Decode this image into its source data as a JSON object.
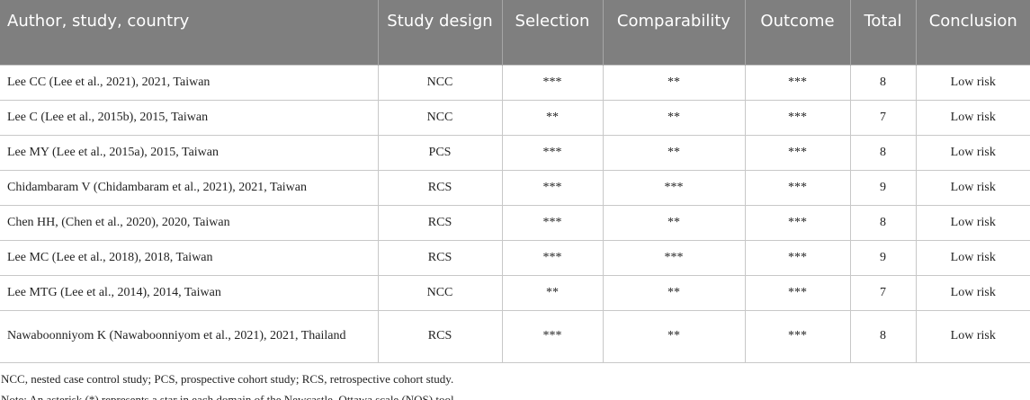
{
  "table": {
    "header": [
      "Author, study, country",
      "Study design",
      "Selection",
      "Comparability",
      "Outcome",
      "Total",
      "Conclusion"
    ],
    "rows": [
      [
        "Lee CC (Lee et al., 2021), 2021, Taiwan",
        "NCC",
        "***",
        "**",
        "***",
        "8",
        "Low risk"
      ],
      [
        "Lee C (Lee et al., 2015b), 2015, Taiwan",
        "NCC",
        "**",
        "**",
        "***",
        "7",
        "Low risk"
      ],
      [
        "Lee MY (Lee et al., 2015a), 2015, Taiwan",
        "PCS",
        "***",
        "**",
        "***",
        "8",
        "Low risk"
      ],
      [
        "Chidambaram V (Chidambaram et al., 2021), 2021, Taiwan",
        "RCS",
        "***",
        "***",
        "***",
        "9",
        "Low risk"
      ],
      [
        "Chen HH, (Chen et al., 2020), 2020, Taiwan",
        "RCS",
        "***",
        "**",
        "***",
        "8",
        "Low risk"
      ],
      [
        "Lee MC (Lee et al., 2018), 2018, Taiwan",
        "RCS",
        "***",
        "***",
        "***",
        "9",
        "Low risk"
      ],
      [
        "Lee MTG (Lee et al., 2014), 2014, Taiwan",
        "NCC",
        "**",
        "**",
        "***",
        "7",
        "Low risk"
      ],
      [
        "Nawaboonniyom K (Nawaboonniyom et al., 2021), 2021, Thailand",
        "RCS",
        "***",
        "**",
        "***",
        "8",
        "Low risk"
      ]
    ]
  },
  "notes": [
    "NCC, nested case control study; PCS, prospective cohort study; RCS, retrospective cohort study.",
    "Note: An asterisk (*) represents a star in each domain of the Newcastle–Ottawa scale (NOS) tool."
  ]
}
